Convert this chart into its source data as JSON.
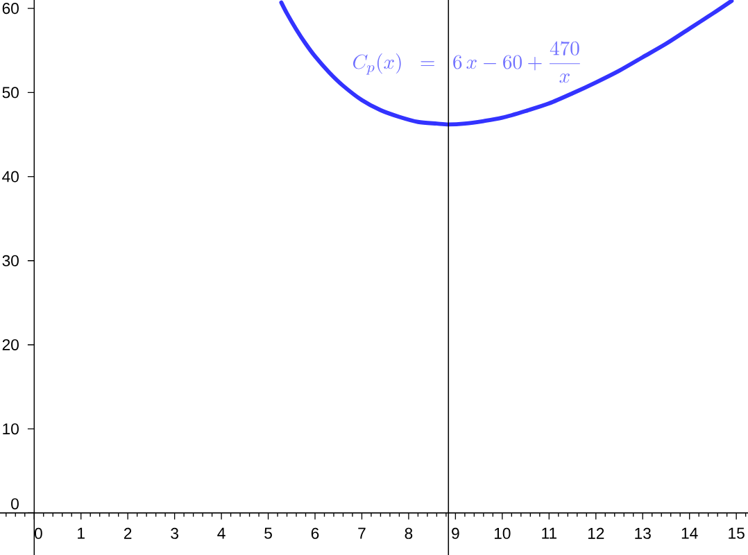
{
  "chart_data": {
    "type": "line",
    "x": [
      5.28,
      5.4,
      5.6,
      5.8,
      6.0,
      6.3,
      6.6,
      7.0,
      7.4,
      7.8,
      8.2,
      8.6,
      8.85,
      9.2,
      9.6,
      10,
      10.5,
      11,
      11.5,
      12,
      12.5,
      13,
      13.5,
      14,
      14.5,
      14.9
    ],
    "series": [
      {
        "name": "C_p(x)\\ \\ =\\ \\ 6\\,x-60+\\frac{470}{x}",
        "color": "#3333ff",
        "values": [
          60.7,
          59.4,
          57.5,
          55.8,
          54.3,
          52.4,
          50.8,
          49.1,
          47.9,
          47.1,
          46.5,
          46.3,
          46.2,
          46.3,
          46.6,
          47.0,
          47.8,
          48.7,
          49.9,
          51.2,
          52.6,
          54.2,
          55.8,
          57.6,
          59.4,
          60.9
        ]
      }
    ],
    "xlim": [
      -0.73,
      15.25
    ],
    "ylim": [
      -5,
      61
    ],
    "xticks": [
      0,
      1,
      2,
      3,
      4,
      5,
      6,
      7,
      8,
      9,
      10,
      11,
      12,
      13,
      14,
      15
    ],
    "yticks": [
      0,
      10,
      20,
      30,
      40,
      50,
      60
    ],
    "ref_lines": [
      {
        "axis": "x",
        "value": 8.85,
        "color": "#000000"
      }
    ],
    "legend": false,
    "marker": "none",
    "line_style": "solid"
  }
}
